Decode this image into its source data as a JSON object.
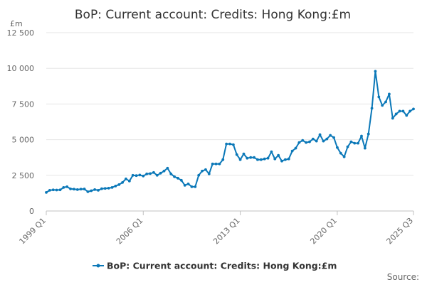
{
  "chart_data": {
    "type": "line",
    "title": "BoP: Current account: Credits: Hong Kong:£m",
    "ylabel": "£m",
    "xlabel": "",
    "ylim": [
      0,
      12500
    ],
    "yticks": [
      0,
      2500,
      5000,
      7500,
      10000,
      12500
    ],
    "ytick_labels": [
      "0",
      "2 500",
      "5 000",
      "7 500",
      "10 000",
      "12 500"
    ],
    "xtick_labels": [
      "1999 Q1",
      "2006 Q1",
      "2013 Q1",
      "2020 Q1",
      "2025 Q3"
    ],
    "xtick_index": [
      0,
      28,
      56,
      84,
      106
    ],
    "grid": true,
    "legend": "bottom",
    "source_label": "Source:",
    "color": "#0b78b8",
    "series": [
      {
        "name": "BoP: Current account: Credits: Hong Kong:£m",
        "values": [
          1300,
          1450,
          1480,
          1470,
          1480,
          1650,
          1700,
          1550,
          1530,
          1500,
          1530,
          1540,
          1350,
          1420,
          1500,
          1450,
          1560,
          1580,
          1600,
          1650,
          1750,
          1850,
          2000,
          2250,
          2100,
          2500,
          2480,
          2520,
          2450,
          2600,
          2620,
          2700,
          2500,
          2650,
          2800,
          3000,
          2600,
          2400,
          2300,
          2150,
          1800,
          1900,
          1700,
          1700,
          2500,
          2800,
          2900,
          2600,
          3300,
          3300,
          3300,
          3600,
          4700,
          4700,
          4650,
          3950,
          3600,
          4000,
          3700,
          3750,
          3750,
          3600,
          3600,
          3650,
          3700,
          4150,
          3650,
          3900,
          3500,
          3600,
          3650,
          4200,
          4400,
          4800,
          4950,
          4800,
          4850,
          5050,
          4900,
          5350,
          4900,
          5050,
          5300,
          5150,
          4450,
          4050,
          3800,
          4500,
          4850,
          4750,
          4750,
          5250,
          4400,
          5400,
          7200,
          9800,
          8000,
          7400,
          7650,
          8200,
          6500,
          6800,
          7000,
          7000,
          6700,
          7000,
          7150
        ]
      }
    ]
  }
}
